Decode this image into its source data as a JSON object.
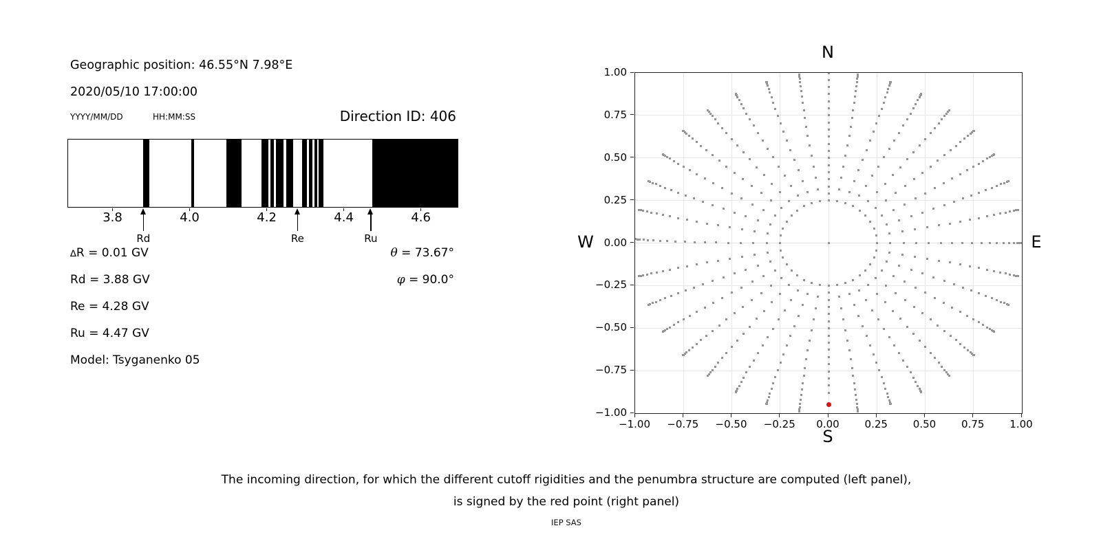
{
  "header": {
    "geo": "Geographic position: 46.55°N 7.98°E",
    "datetime": "2020/05/10 17:00:00",
    "date_format": "YYYY/MM/DD",
    "time_format": "HH:MM:SS",
    "direction_id": "Direction ID: 406"
  },
  "info": {
    "delta_r": "∆R = 0.01 GV",
    "rd": "Rd = 3.88 GV",
    "re": "Re = 4.28 GV",
    "ru": "Ru = 4.47 GV",
    "model": "Model: Tsyganenko 05",
    "theta": "θ = 73.67°",
    "phi": "φ = 90.0°"
  },
  "caption": {
    "line1": "The incoming direction, for which the different cutoff rigidities and the penumbra structure are computed (left panel),",
    "line2": "is signed by the red point (right panel)",
    "credit": "IEP SAS"
  },
  "chart_data": [
    {
      "type": "bar",
      "name": "penumbra-barcode",
      "xlabel_unit": "GV",
      "xlim": [
        3.683,
        4.697
      ],
      "xtick_values": [
        3.8,
        4.0,
        4.2,
        4.4,
        4.6
      ],
      "xtick_labels": [
        "3.8",
        "4.0",
        "4.2",
        "4.4",
        "4.6"
      ],
      "black_intervals_gv": [
        [
          3.878,
          3.893
        ],
        [
          4.002,
          4.01
        ],
        [
          4.094,
          4.133
        ],
        [
          4.184,
          4.202
        ],
        [
          4.207,
          4.216
        ],
        [
          4.223,
          4.241
        ],
        [
          4.249,
          4.267
        ],
        [
          4.29,
          4.303
        ],
        [
          4.308,
          4.316
        ],
        [
          4.322,
          4.33
        ],
        [
          4.333,
          4.345
        ],
        [
          4.472,
          4.697
        ]
      ],
      "arrows": [
        {
          "label": "Rd",
          "value": 3.88
        },
        {
          "label": "Re",
          "value": 4.28
        },
        {
          "label": "Ru",
          "value": 4.47
        }
      ],
      "bar_color": "#000000"
    },
    {
      "type": "scatter",
      "name": "incoming-direction-map",
      "xlim": [
        -1,
        1
      ],
      "ylim": [
        -1,
        1
      ],
      "grid": true,
      "xtick_values": [
        -1,
        -0.75,
        -0.5,
        -0.25,
        0,
        0.25,
        0.5,
        0.75,
        1
      ],
      "xtick_labels": [
        "−1.00",
        "−0.75",
        "−0.50",
        "−0.25",
        "0.00",
        "0.25",
        "0.50",
        "0.75",
        "1.00"
      ],
      "ytick_values": [
        1,
        0.75,
        0.5,
        0.25,
        0,
        -0.25,
        -0.5,
        -0.75,
        -1
      ],
      "ytick_labels": [
        "1.00",
        "0.75",
        "0.50",
        "0.25",
        "0.00",
        "−0.25",
        "−0.50",
        "−0.75",
        "−1.00"
      ],
      "compass": {
        "n": "N",
        "e": "E",
        "s": "S",
        "w": "W"
      },
      "spokes": {
        "azimuth_start_deg": 0,
        "azimuth_step_deg": 10,
        "count": 36,
        "points_per_spoke": 19,
        "theta_min_deg": 14.48,
        "theta_max_deg": 90,
        "radial_mapping": "r = sin(theta)",
        "even_radius_azimuths_deg": [
          90,
          270
        ],
        "south_spoke_r_max": 0.88,
        "south_spoke_r_step": 0.042,
        "r_inner": 0.25,
        "r_outer": 1.0,
        "curvature_deg": 1.3
      },
      "center_point": {
        "x": 0,
        "y": 0
      },
      "red_point": {
        "x": 0.0,
        "y": -0.95
      },
      "dot_color": "#949494",
      "red_color": "#e01010",
      "grid_color": "#e7e7e7"
    }
  ]
}
